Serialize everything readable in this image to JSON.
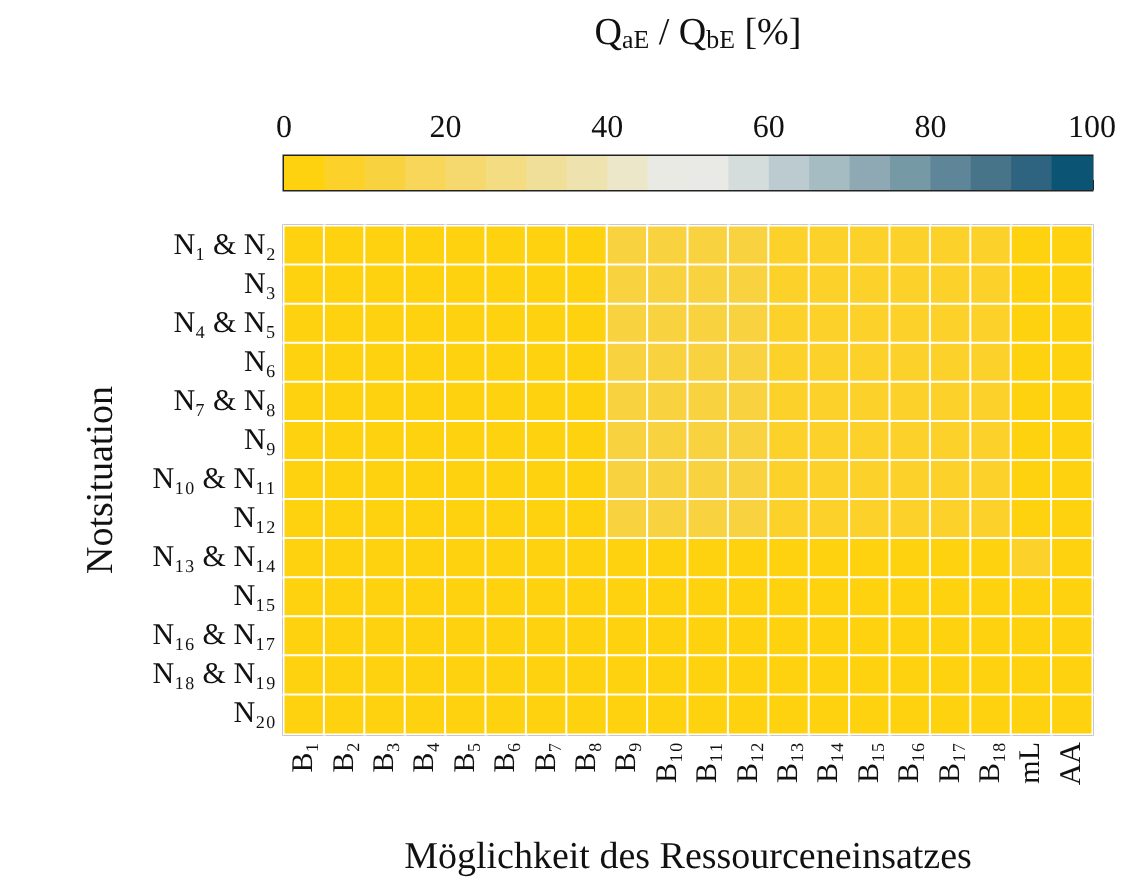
{
  "chart_data": {
    "type": "heatmap",
    "xlabel": "Möglichkeit des Ressourceneinsatzes",
    "ylabel": "Notsituation",
    "clabel": "Q$_{aE}$ / Q$_{bE}$ [%]",
    "clim": [
      0,
      100
    ],
    "cticks": [
      0,
      20,
      40,
      60,
      80,
      100
    ],
    "categories": [
      "B₁",
      "B₂",
      "B₃",
      "B₄",
      "B₅",
      "B₆",
      "B₇",
      "B₈",
      "B₉",
      "B₁₀",
      "B₁₁",
      "B₁₂",
      "B₁₃",
      "B₁₄",
      "B₁₅",
      "B₁₆",
      "B₁₇",
      "B₁₈",
      "mL",
      "AA"
    ],
    "y_categories": [
      "N₁ & N₂",
      "N₃",
      "N₄ & N₅",
      "N₆",
      "N₇ & N₈",
      "N₉",
      "N₁₀ & N₁₁",
      "N₁₂",
      "N₁₃ & N₁₄",
      "N₁₅",
      "N₁₆ & N₁₇",
      "N₁₈ & N₁₉",
      "N₂₀"
    ],
    "cells": [
      [
        2,
        2,
        2,
        2,
        2,
        2,
        2,
        2,
        12,
        12,
        12,
        12,
        7,
        7,
        7,
        7,
        7,
        7,
        2,
        2
      ],
      [
        2,
        2,
        2,
        2,
        2,
        2,
        2,
        2,
        12,
        12,
        12,
        12,
        7,
        7,
        7,
        7,
        7,
        7,
        2,
        2
      ],
      [
        2,
        2,
        2,
        2,
        2,
        2,
        2,
        2,
        12,
        12,
        12,
        12,
        7,
        7,
        7,
        7,
        7,
        7,
        2,
        2
      ],
      [
        2,
        2,
        2,
        2,
        2,
        2,
        2,
        2,
        12,
        12,
        12,
        12,
        7,
        7,
        7,
        7,
        7,
        7,
        2,
        2
      ],
      [
        2,
        2,
        2,
        2,
        2,
        2,
        2,
        2,
        12,
        12,
        12,
        12,
        7,
        7,
        7,
        7,
        7,
        7,
        2,
        2
      ],
      [
        2,
        2,
        2,
        2,
        2,
        2,
        2,
        2,
        12,
        12,
        12,
        12,
        7,
        7,
        7,
        7,
        7,
        7,
        2,
        2
      ],
      [
        2,
        2,
        2,
        2,
        2,
        2,
        2,
        2,
        12,
        12,
        12,
        12,
        7,
        7,
        7,
        7,
        7,
        7,
        2,
        2
      ],
      [
        2,
        2,
        2,
        2,
        2,
        2,
        2,
        2,
        12,
        12,
        12,
        12,
        7,
        7,
        7,
        7,
        7,
        7,
        2,
        2
      ],
      [
        2,
        2,
        2,
        2,
        2,
        2,
        2,
        2,
        2,
        2,
        2,
        2,
        2,
        2,
        2,
        2,
        2,
        2,
        7,
        2
      ],
      [
        2,
        2,
        2,
        2,
        2,
        2,
        2,
        2,
        2,
        2,
        2,
        2,
        2,
        2,
        2,
        2,
        2,
        2,
        2,
        2
      ],
      [
        2,
        2,
        2,
        2,
        2,
        2,
        2,
        2,
        2,
        2,
        2,
        2,
        2,
        2,
        2,
        2,
        2,
        2,
        2,
        2
      ],
      [
        2,
        2,
        2,
        2,
        2,
        2,
        2,
        2,
        2,
        2,
        2,
        2,
        2,
        2,
        2,
        2,
        2,
        2,
        2,
        2
      ],
      [
        2,
        2,
        2,
        2,
        2,
        2,
        2,
        2,
        2,
        2,
        2,
        2,
        2,
        2,
        2,
        2,
        2,
        2,
        2,
        2
      ]
    ]
  }
}
